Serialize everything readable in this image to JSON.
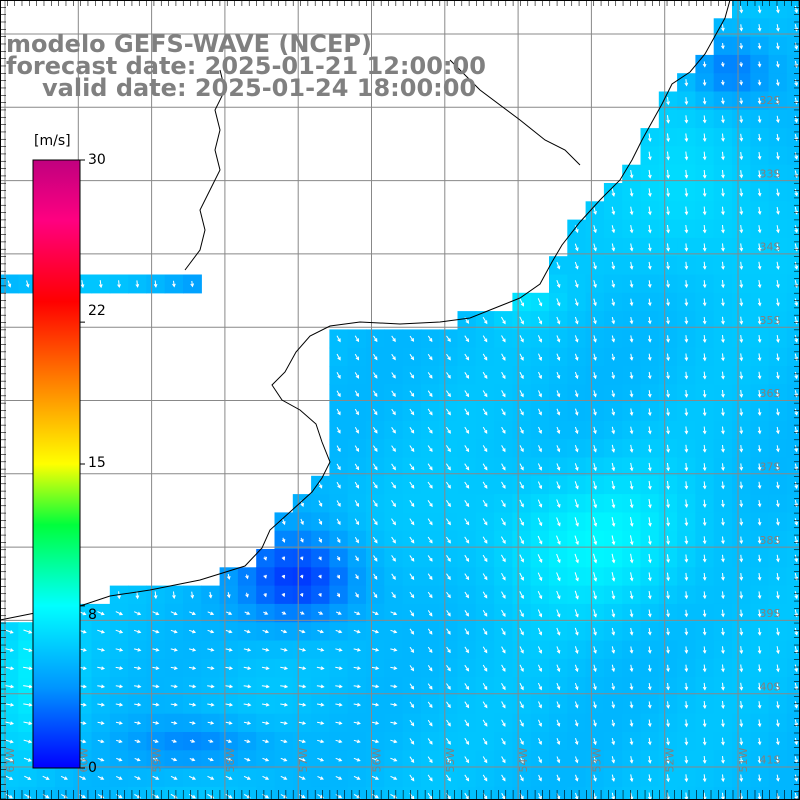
{
  "header": {
    "model_line": "modelo GEFS-WAVE (NCEP)",
    "forecast_line": "forecast date: 2025-01-21 12:00:00",
    "valid_line": "valid date: 2025-01-24 18:00:00"
  },
  "colorbar": {
    "unit": "[m/s]",
    "ticks": [
      {
        "label": "30",
        "value": 30
      },
      {
        "label": "22",
        "value": 22
      },
      {
        "label": "15",
        "value": 15
      },
      {
        "label": "8",
        "value": 8
      },
      {
        "label": "0",
        "value": 0
      }
    ],
    "colors": [
      "#0000ff",
      "#00aaff",
      "#00ffff",
      "#00ff00",
      "#ffff00",
      "#ff8000",
      "#ff0000",
      "#ff0080",
      "#c0007f"
    ]
  },
  "map": {
    "lat_labels": [
      "32S",
      "33S",
      "34S",
      "35S",
      "36S",
      "37S",
      "38S",
      "39S",
      "40S",
      "41S"
    ],
    "lon_labels": [
      "61W",
      "60W",
      "59W",
      "58W",
      "57W",
      "56W",
      "55W",
      "54W",
      "53W",
      "52W",
      "51W"
    ],
    "palette": {
      "land": "#ffffff",
      "coast": "#000000",
      "grid": "#888888",
      "arrow": "#ffffff",
      "label": "#808080"
    }
  }
}
